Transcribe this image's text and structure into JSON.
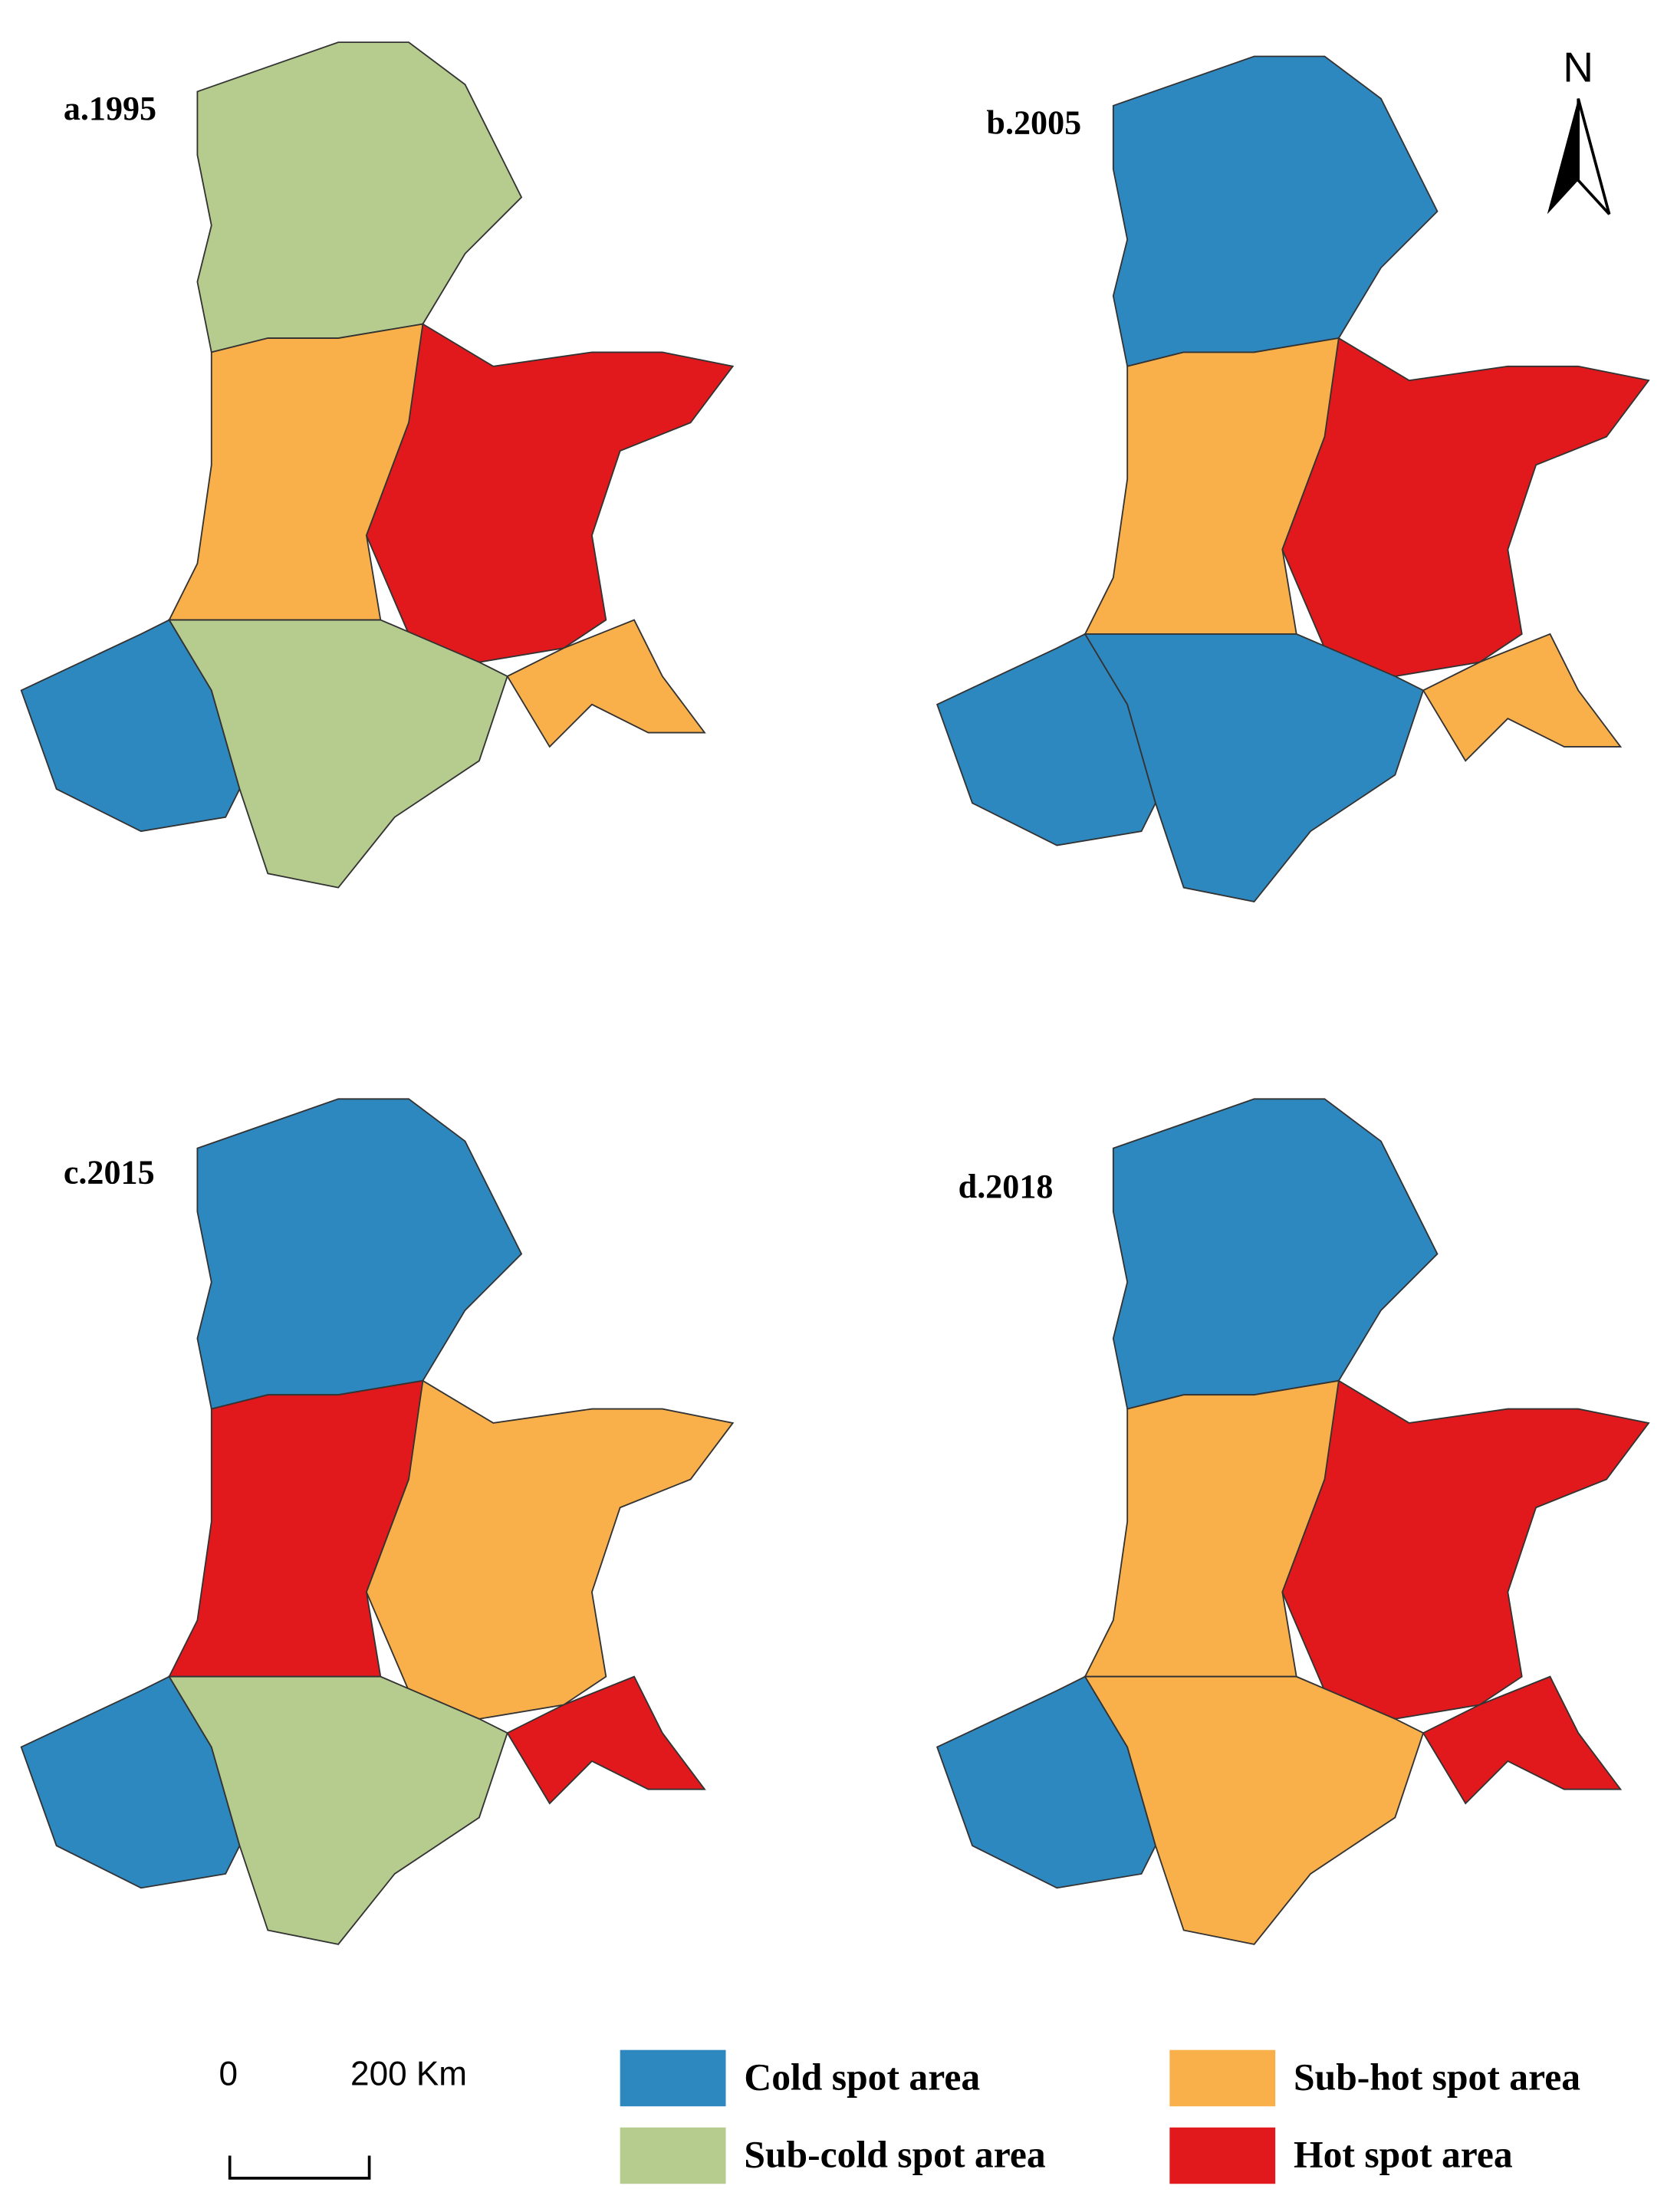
{
  "panels": [
    {
      "label": "a.1995"
    },
    {
      "label": "b.2005"
    },
    {
      "label": "c.2015"
    },
    {
      "label": "d.2018"
    }
  ],
  "north_arrow": "N",
  "scale_bar": {
    "start": "0",
    "end": "200 Km"
  },
  "legend": [
    {
      "label": "Cold spot area",
      "color": "#2e88c0"
    },
    {
      "label": "Sub-cold spot area",
      "color": "#b5cc8e"
    },
    {
      "label": "Sub-hot spot area",
      "color": "#f9b04a"
    },
    {
      "label": "Hot spot area",
      "color": "#e2191c"
    }
  ]
}
